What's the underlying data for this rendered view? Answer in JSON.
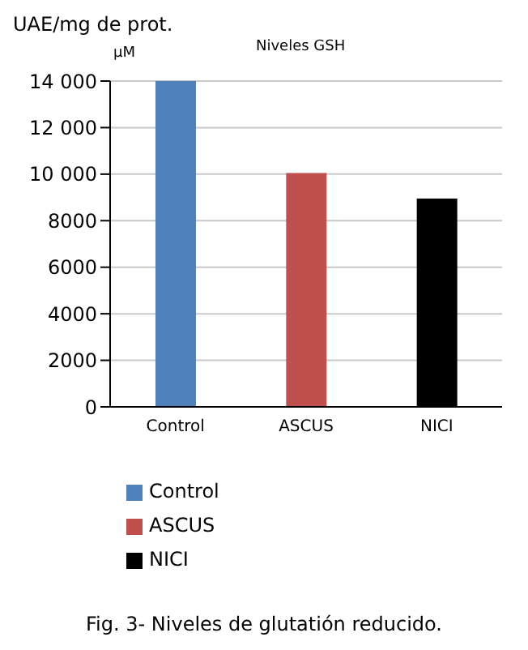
{
  "chart_data": {
    "type": "bar",
    "title": "Niveles GSH",
    "ylabel": "UAE/mg de prot.",
    "annotations": [
      "μM",
      "Fig. 3- Niveles de glutatión reducido."
    ],
    "categories": [
      "Control",
      "ASCUS",
      "NICI"
    ],
    "stacked": true,
    "series": [
      {
        "name": "Control",
        "color": "#4f81bd",
        "values": [
          14000,
          null,
          null
        ]
      },
      {
        "name": "ASCUS",
        "color": "#c0504d",
        "values": [
          null,
          10050,
          null
        ]
      },
      {
        "name": "NICI",
        "color": "#000000",
        "values": [
          null,
          null,
          8950
        ]
      }
    ],
    "ylim": [
      0,
      14000
    ],
    "yticks": [
      0,
      2000,
      4000,
      6000,
      {
        "value": 8000,
        "label": "8000"
      },
      {
        "value": 10000,
        "label": "10 000"
      },
      {
        "value": 12000,
        "label": "12 000"
      },
      {
        "value": 14000,
        "label": "14 000"
      }
    ],
    "grid": "y",
    "legend": "bottom"
  }
}
